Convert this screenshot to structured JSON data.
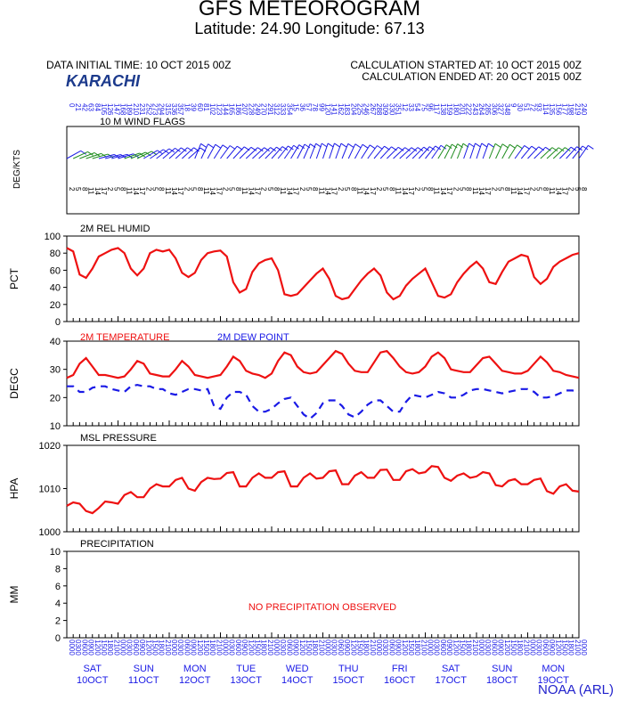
{
  "header": {
    "title": "GFS METEOROGRAM",
    "location": "Latitude: 24.90 Longitude:  67.13",
    "init_time": "DATA INITIAL TIME: 10 OCT 2015 00Z",
    "calc_started": "CALCULATION STARTED AT: 10 OCT 2015 00Z",
    "calc_ended": "CALCULATION ENDED AT: 20 OCT 2015 00Z",
    "city": "KARACHI",
    "credit": "NOAA (ARL)"
  },
  "colors": {
    "red": "#ee1111",
    "blue": "#1a1ae6",
    "green": "#1e8c1e",
    "frame": "#000000"
  },
  "chart_data": [
    {
      "type": "line",
      "title": "10 M  WIND FLAGS",
      "ylabel": "DEG/KTS",
      "note": "wind barbs with direction and speed labels",
      "x_hours": [
        0,
        240
      ]
    },
    {
      "type": "line",
      "title": "2M REL HUMID",
      "ylabel": "PCT",
      "ylim": [
        0,
        100
      ],
      "yticks": [
        0,
        20,
        40,
        60,
        80,
        100
      ],
      "series": [
        {
          "name": "2M REL HUMID",
          "color": "#ee1111",
          "x": [
            0,
            3,
            6,
            9,
            12,
            15,
            18,
            21,
            24,
            27,
            30,
            33,
            36,
            39,
            42,
            45,
            48,
            51,
            54,
            57,
            60,
            63,
            66,
            69,
            72,
            75,
            78,
            81,
            84,
            87,
            90,
            93,
            96,
            99,
            102,
            105,
            108,
            111,
            114,
            117,
            120,
            123,
            126,
            129,
            132,
            135,
            138,
            141,
            144,
            147,
            150,
            153,
            156,
            159,
            162,
            165,
            168,
            171,
            174,
            177,
            180,
            183,
            186,
            189,
            192,
            195,
            198,
            201,
            204,
            207,
            210,
            213,
            216,
            219,
            222,
            225,
            228,
            231,
            234,
            237,
            240
          ],
          "values": [
            86,
            82,
            55,
            51,
            62,
            76,
            80,
            84,
            86,
            80,
            62,
            54,
            62,
            80,
            84,
            82,
            84,
            74,
            57,
            52,
            57,
            72,
            80,
            82,
            83,
            76,
            46,
            34,
            38,
            58,
            68,
            72,
            74,
            60,
            32,
            30,
            32,
            40,
            48,
            56,
            62,
            50,
            30,
            26,
            28,
            38,
            48,
            56,
            62,
            54,
            34,
            26,
            30,
            42,
            50,
            56,
            62,
            46,
            30,
            28,
            32,
            46,
            56,
            64,
            70,
            62,
            46,
            44,
            58,
            70,
            74,
            78,
            76,
            52,
            44,
            50,
            64,
            70,
            74,
            78,
            80
          ]
        }
      ]
    },
    {
      "type": "line",
      "title": "",
      "ylabel": "DEGC",
      "ylim": [
        10,
        40
      ],
      "yticks": [
        10,
        20,
        30,
        40
      ],
      "series": [
        {
          "name": "2M TEMPERATURE",
          "color": "#ee1111",
          "dash": false,
          "x": [
            0,
            3,
            6,
            9,
            12,
            15,
            18,
            21,
            24,
            27,
            30,
            33,
            36,
            39,
            42,
            45,
            48,
            51,
            54,
            57,
            60,
            63,
            66,
            69,
            72,
            75,
            78,
            81,
            84,
            87,
            90,
            93,
            96,
            99,
            102,
            105,
            108,
            111,
            114,
            117,
            120,
            123,
            126,
            129,
            132,
            135,
            138,
            141,
            144,
            147,
            150,
            153,
            156,
            159,
            162,
            165,
            168,
            171,
            174,
            177,
            180,
            183,
            186,
            189,
            192,
            195,
            198,
            201,
            204,
            207,
            210,
            213,
            216,
            219,
            222,
            225,
            228,
            231,
            234,
            237,
            240
          ],
          "values": [
            27,
            28,
            32,
            34,
            31,
            28,
            28,
            27.5,
            27,
            27.5,
            30,
            33,
            32,
            28.5,
            28,
            27.5,
            27.5,
            30,
            33,
            31,
            28,
            27.5,
            27,
            27.5,
            28,
            31,
            34.5,
            33,
            29.5,
            28.5,
            28,
            27,
            28.5,
            33,
            36,
            35,
            31,
            29,
            28.5,
            29,
            31.5,
            34,
            36.5,
            35.5,
            32,
            29.5,
            29,
            29,
            32.5,
            36,
            36.5,
            34,
            31,
            29,
            28.5,
            29,
            31,
            34.5,
            36,
            34,
            30,
            29.5,
            29,
            29,
            31.5,
            34,
            34.5,
            32,
            29.5,
            29,
            28.5,
            28.5,
            29.5,
            32,
            34.5,
            32.5,
            29.5,
            29,
            28,
            27.5,
            27
          ]
        },
        {
          "name": "2M   DEW POINT",
          "color": "#1a1ae6",
          "dash": true,
          "x": [
            0,
            3,
            6,
            9,
            12,
            15,
            18,
            21,
            24,
            27,
            30,
            33,
            36,
            39,
            42,
            45,
            48,
            51,
            54,
            57,
            60,
            63,
            66,
            69,
            72,
            75,
            78,
            81,
            84,
            87,
            90,
            93,
            96,
            99,
            102,
            105,
            108,
            111,
            114,
            117,
            120,
            123,
            126,
            129,
            132,
            135,
            138,
            141,
            144,
            147,
            150,
            153,
            156,
            159,
            162,
            165,
            168,
            171,
            174,
            177,
            180,
            183,
            186,
            189,
            192,
            195,
            198,
            201,
            204,
            207,
            210,
            213,
            216,
            219,
            222,
            225,
            228,
            231,
            234,
            237,
            240
          ],
          "values": [
            24,
            24,
            22,
            22,
            23.5,
            24,
            24,
            23,
            22.5,
            22,
            24,
            24.5,
            24,
            24,
            23,
            23,
            21.5,
            21,
            22,
            23,
            23,
            22.5,
            23,
            17,
            16,
            20,
            22,
            22,
            21,
            17,
            15,
            15,
            16,
            18,
            19.5,
            20,
            17,
            14,
            12.5,
            14.5,
            18,
            19,
            19,
            17,
            14,
            13,
            15,
            17.5,
            19,
            19,
            17,
            15,
            15,
            18.5,
            21,
            20.5,
            20,
            21,
            22,
            21.5,
            20,
            20,
            21,
            22.5,
            23,
            23,
            22.5,
            22,
            21.5,
            22,
            22.5,
            23,
            23,
            22,
            20,
            20,
            20.5,
            21.5,
            22.5,
            22.5,
            22
          ]
        }
      ]
    },
    {
      "type": "line",
      "title": "MSL PRESSURE",
      "ylabel": "HPA",
      "ylim": [
        1000,
        1020
      ],
      "yticks": [
        1000,
        1010,
        1020
      ],
      "series": [
        {
          "name": "MSL PRESSURE",
          "color": "#ee1111",
          "x": [
            0,
            3,
            6,
            9,
            12,
            15,
            18,
            21,
            24,
            27,
            30,
            33,
            36,
            39,
            42,
            45,
            48,
            51,
            54,
            57,
            60,
            63,
            66,
            69,
            72,
            75,
            78,
            81,
            84,
            87,
            90,
            93,
            96,
            99,
            102,
            105,
            108,
            111,
            114,
            117,
            120,
            123,
            126,
            129,
            132,
            135,
            138,
            141,
            144,
            147,
            150,
            153,
            156,
            159,
            162,
            165,
            168,
            171,
            174,
            177,
            180,
            183,
            186,
            189,
            192,
            195,
            198,
            201,
            204,
            207,
            210,
            213,
            216,
            219,
            222,
            225,
            228,
            231,
            234,
            237,
            240
          ],
          "values": [
            1006,
            1006.8,
            1006.5,
            1004.8,
            1004.3,
            1005.5,
            1007,
            1006.8,
            1006.5,
            1008.5,
            1009.2,
            1008,
            1008,
            1010,
            1011,
            1010.5,
            1010.5,
            1012,
            1012.5,
            1010,
            1009.5,
            1011.5,
            1012.5,
            1012.2,
            1012.3,
            1013.6,
            1013.8,
            1010.5,
            1010.5,
            1012.5,
            1013.5,
            1012.5,
            1012.5,
            1013.8,
            1014,
            1010.5,
            1010.5,
            1012.5,
            1013.5,
            1012.3,
            1012.5,
            1014,
            1014.2,
            1011,
            1011,
            1013,
            1013.8,
            1012.5,
            1012.5,
            1014.3,
            1014.4,
            1012,
            1012,
            1014,
            1014.5,
            1013.5,
            1013.8,
            1015.2,
            1015,
            1012.5,
            1011.8,
            1013,
            1013.5,
            1012.5,
            1012.8,
            1013.8,
            1013.5,
            1010.8,
            1010.5,
            1011.8,
            1012.2,
            1011,
            1011,
            1012,
            1012.3,
            1009.4,
            1008.8,
            1010.5,
            1011,
            1009.5,
            1009.3
          ]
        }
      ]
    },
    {
      "type": "line",
      "title": "PRECIPITATION",
      "ylabel": "MM",
      "ylim": [
        0,
        10
      ],
      "yticks": [
        0,
        2,
        4,
        6,
        8,
        10
      ],
      "annotation": "NO PRECIPITATION OBSERVED",
      "series": []
    }
  ],
  "x_axis": {
    "hour_labels": [
      "0000",
      "0300",
      "0600",
      "0900",
      "1200",
      "1500",
      "1800",
      "2100"
    ],
    "days": [
      {
        "dow": "SAT",
        "date": "10OCT"
      },
      {
        "dow": "SUN",
        "date": "11OCT"
      },
      {
        "dow": "MON",
        "date": "12OCT"
      },
      {
        "dow": "TUE",
        "date": "13OCT"
      },
      {
        "dow": "WED",
        "date": "14OCT"
      },
      {
        "dow": "THU",
        "date": "15OCT"
      },
      {
        "dow": "FRI",
        "date": "16OCT"
      },
      {
        "dow": "SAT",
        "date": "17OCT"
      },
      {
        "dow": "SUN",
        "date": "18OCT"
      },
      {
        "dow": "MON",
        "date": "19OCT"
      }
    ]
  }
}
